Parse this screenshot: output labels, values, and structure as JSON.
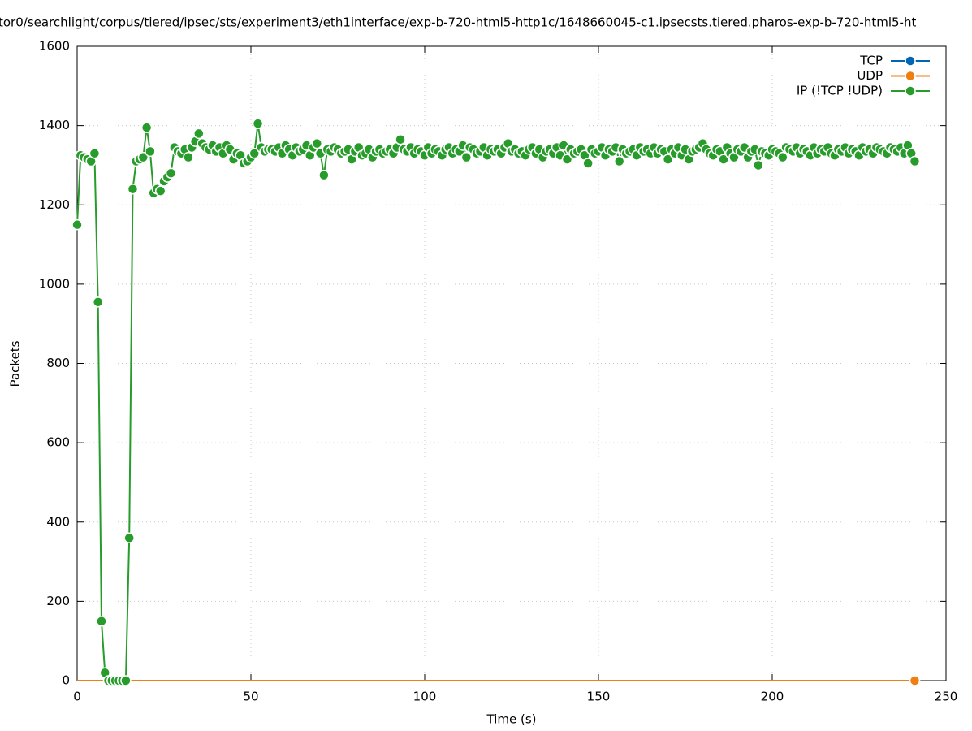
{
  "chart_data": {
    "type": "line",
    "title": "tor0/searchlight/corpus/tiered/ipsec/sts/experiment3/eth1interface/exp-b-720-html5-http1c/1648660045-c1.ipsecsts.tiered.pharos-exp-b-720-html5-ht",
    "xlabel": "Time (s)",
    "ylabel": "Packets",
    "x": [
      0,
      1,
      2,
      3,
      4,
      5,
      6,
      7,
      8,
      9,
      10,
      11,
      12,
      13,
      14,
      15,
      16,
      17,
      18,
      19,
      20,
      21,
      22,
      23,
      24,
      25,
      26,
      27,
      28,
      29,
      30,
      31,
      32,
      33,
      34,
      35,
      36,
      37,
      38,
      39,
      40,
      41,
      42,
      43,
      44,
      45,
      46,
      47,
      48,
      49,
      50,
      51,
      52,
      53,
      54,
      55,
      56,
      57,
      58,
      59,
      60,
      61,
      62,
      63,
      64,
      65,
      66,
      67,
      68,
      69,
      70,
      71,
      72,
      73,
      74,
      75,
      76,
      77,
      78,
      79,
      80,
      81,
      82,
      83,
      84,
      85,
      86,
      87,
      88,
      89,
      90,
      91,
      92,
      93,
      94,
      95,
      96,
      97,
      98,
      99,
      100,
      101,
      102,
      103,
      104,
      105,
      106,
      107,
      108,
      109,
      110,
      111,
      112,
      113,
      114,
      115,
      116,
      117,
      118,
      119,
      120,
      121,
      122,
      123,
      124,
      125,
      126,
      127,
      128,
      129,
      130,
      131,
      132,
      133,
      134,
      135,
      136,
      137,
      138,
      139,
      140,
      141,
      142,
      143,
      144,
      145,
      146,
      147,
      148,
      149,
      150,
      151,
      152,
      153,
      154,
      155,
      156,
      157,
      158,
      159,
      160,
      161,
      162,
      163,
      164,
      165,
      166,
      167,
      168,
      169,
      170,
      171,
      172,
      173,
      174,
      175,
      176,
      177,
      178,
      179,
      180,
      181,
      182,
      183,
      184,
      185,
      186,
      187,
      188,
      189,
      190,
      191,
      192,
      193,
      194,
      195,
      196,
      197,
      198,
      199,
      200,
      201,
      202,
      203,
      204,
      205,
      206,
      207,
      208,
      209,
      210,
      211,
      212,
      213,
      214,
      215,
      216,
      217,
      218,
      219,
      220,
      221,
      222,
      223,
      224,
      225,
      226,
      227,
      228,
      229,
      230,
      231,
      232,
      233,
      234,
      235,
      236,
      237,
      238,
      239,
      240,
      241
    ],
    "series": [
      {
        "name": "TCP",
        "color": "#0066b3",
        "values": [
          0,
          0,
          0,
          0,
          0,
          0,
          0,
          0,
          0,
          0,
          0,
          0,
          0,
          0,
          0,
          0,
          0,
          0,
          0,
          0,
          0,
          0,
          0,
          0,
          0,
          0,
          0,
          0,
          0,
          0,
          0,
          0,
          0,
          0,
          0,
          0,
          0,
          0,
          0,
          0,
          0,
          0,
          0,
          0,
          0,
          0,
          0,
          0,
          0,
          0,
          0,
          0,
          0,
          0,
          0,
          0,
          0,
          0,
          0,
          0,
          0,
          0,
          0,
          0,
          0,
          0,
          0,
          0,
          0,
          0,
          0,
          0,
          0,
          0,
          0,
          0,
          0,
          0,
          0,
          0,
          0,
          0,
          0,
          0,
          0,
          0,
          0,
          0,
          0,
          0,
          0,
          0,
          0,
          0,
          0,
          0,
          0,
          0,
          0,
          0,
          0,
          0,
          0,
          0,
          0,
          0,
          0,
          0,
          0,
          0,
          0,
          0,
          0,
          0,
          0,
          0,
          0,
          0,
          0,
          0,
          0,
          0,
          0,
          0,
          0,
          0,
          0,
          0,
          0,
          0,
          0,
          0,
          0,
          0,
          0,
          0,
          0,
          0,
          0,
          0,
          0,
          0,
          0,
          0,
          0,
          0,
          0,
          0,
          0,
          0,
          0,
          0,
          0,
          0,
          0,
          0,
          0,
          0,
          0,
          0,
          0,
          0,
          0,
          0,
          0,
          0,
          0,
          0,
          0,
          0,
          0,
          0,
          0,
          0,
          0,
          0,
          0,
          0,
          0,
          0,
          0,
          0,
          0,
          0,
          0,
          0,
          0,
          0,
          0,
          0,
          0,
          0,
          0,
          0,
          0,
          0,
          0,
          0,
          0,
          0,
          0,
          0,
          0,
          0,
          0,
          0,
          0,
          0,
          0,
          0,
          0,
          0,
          0,
          0,
          0,
          0,
          0,
          0,
          0,
          0,
          0,
          0,
          0,
          0,
          0,
          0,
          0,
          0,
          0,
          0,
          0,
          0,
          0,
          0,
          0,
          0,
          0,
          0,
          0,
          0,
          0,
          0
        ]
      },
      {
        "name": "UDP",
        "color": "#ee7f10",
        "values": [
          0,
          0,
          0,
          0,
          0,
          0,
          0,
          0,
          0,
          0,
          0,
          0,
          0,
          0,
          0,
          0,
          0,
          0,
          0,
          0,
          0,
          0,
          0,
          0,
          0,
          0,
          0,
          0,
          0,
          0,
          0,
          0,
          0,
          0,
          0,
          0,
          0,
          0,
          0,
          0,
          0,
          0,
          0,
          0,
          0,
          0,
          0,
          0,
          0,
          0,
          0,
          0,
          0,
          0,
          0,
          0,
          0,
          0,
          0,
          0,
          0,
          0,
          0,
          0,
          0,
          0,
          0,
          0,
          0,
          0,
          0,
          0,
          0,
          0,
          0,
          0,
          0,
          0,
          0,
          0,
          0,
          0,
          0,
          0,
          0,
          0,
          0,
          0,
          0,
          0,
          0,
          0,
          0,
          0,
          0,
          0,
          0,
          0,
          0,
          0,
          0,
          0,
          0,
          0,
          0,
          0,
          0,
          0,
          0,
          0,
          0,
          0,
          0,
          0,
          0,
          0,
          0,
          0,
          0,
          0,
          0,
          0,
          0,
          0,
          0,
          0,
          0,
          0,
          0,
          0,
          0,
          0,
          0,
          0,
          0,
          0,
          0,
          0,
          0,
          0,
          0,
          0,
          0,
          0,
          0,
          0,
          0,
          0,
          0,
          0,
          0,
          0,
          0,
          0,
          0,
          0,
          0,
          0,
          0,
          0,
          0,
          0,
          0,
          0,
          0,
          0,
          0,
          0,
          0,
          0,
          0,
          0,
          0,
          0,
          0,
          0,
          0,
          0,
          0,
          0,
          0,
          0,
          0,
          0,
          0,
          0,
          0,
          0,
          0,
          0,
          0,
          0,
          0,
          0,
          0,
          0,
          0,
          0,
          0,
          0,
          0,
          0,
          0,
          0,
          0,
          0,
          0,
          0,
          0,
          0,
          0,
          0,
          0,
          0,
          0,
          0,
          0,
          0,
          0,
          0,
          0,
          0,
          0,
          0,
          0,
          0,
          0,
          0,
          0,
          0,
          0,
          0,
          0,
          0,
          0,
          0,
          0,
          0,
          0,
          0,
          0,
          0
        ]
      },
      {
        "name": "IP (!TCP  !UDP)",
        "color": "#279c2b",
        "values": [
          1150,
          1325,
          1320,
          1315,
          1310,
          1330,
          955,
          150,
          20,
          0,
          0,
          0,
          0,
          0,
          0,
          360,
          1240,
          1310,
          1315,
          1320,
          1395,
          1335,
          1230,
          1240,
          1235,
          1260,
          1270,
          1280,
          1345,
          1335,
          1330,
          1340,
          1320,
          1345,
          1360,
          1380,
          1355,
          1345,
          1340,
          1350,
          1335,
          1345,
          1330,
          1350,
          1340,
          1315,
          1330,
          1325,
          1305,
          1310,
          1320,
          1330,
          1405,
          1345,
          1335,
          1340,
          1340,
          1335,
          1345,
          1330,
          1350,
          1340,
          1325,
          1345,
          1335,
          1340,
          1350,
          1325,
          1345,
          1355,
          1330,
          1275,
          1340,
          1335,
          1345,
          1340,
          1330,
          1335,
          1340,
          1315,
          1335,
          1345,
          1325,
          1330,
          1340,
          1320,
          1335,
          1340,
          1330,
          1335,
          1340,
          1330,
          1345,
          1365,
          1340,
          1335,
          1345,
          1330,
          1340,
          1335,
          1325,
          1345,
          1330,
          1340,
          1335,
          1325,
          1340,
          1345,
          1330,
          1340,
          1335,
          1350,
          1320,
          1345,
          1340,
          1330,
          1335,
          1345,
          1325,
          1340,
          1335,
          1340,
          1330,
          1345,
          1355,
          1335,
          1340,
          1330,
          1335,
          1325,
          1340,
          1345,
          1330,
          1340,
          1320,
          1335,
          1340,
          1330,
          1345,
          1325,
          1350,
          1315,
          1340,
          1330,
          1335,
          1340,
          1325,
          1305,
          1340,
          1330,
          1335,
          1345,
          1325,
          1340,
          1335,
          1345,
          1310,
          1340,
          1330,
          1335,
          1340,
          1325,
          1345,
          1335,
          1340,
          1330,
          1345,
          1330,
          1340,
          1335,
          1315,
          1340,
          1330,
          1345,
          1325,
          1340,
          1315,
          1335,
          1340,
          1345,
          1355,
          1340,
          1330,
          1325,
          1340,
          1335,
          1315,
          1345,
          1330,
          1320,
          1340,
          1335,
          1345,
          1320,
          1335,
          1340,
          1300,
          1335,
          1330,
          1325,
          1340,
          1335,
          1330,
          1320,
          1345,
          1340,
          1335,
          1345,
          1330,
          1340,
          1335,
          1325,
          1345,
          1330,
          1340,
          1335,
          1345,
          1330,
          1325,
          1340,
          1335,
          1345,
          1330,
          1340,
          1335,
          1325,
          1345,
          1335,
          1340,
          1330,
          1345,
          1340,
          1335,
          1330,
          1345,
          1340,
          1335,
          1345,
          1330,
          1350,
          1330,
          1310
        ]
      }
    ],
    "xlim": [
      0,
      250
    ],
    "xticks": [
      0,
      50,
      100,
      150,
      200,
      250
    ],
    "ylim": [
      0,
      1600
    ],
    "yticks": [
      0,
      200,
      400,
      600,
      800,
      1000,
      1200,
      1400,
      1600
    ],
    "grid": true,
    "legend": "top-right"
  }
}
